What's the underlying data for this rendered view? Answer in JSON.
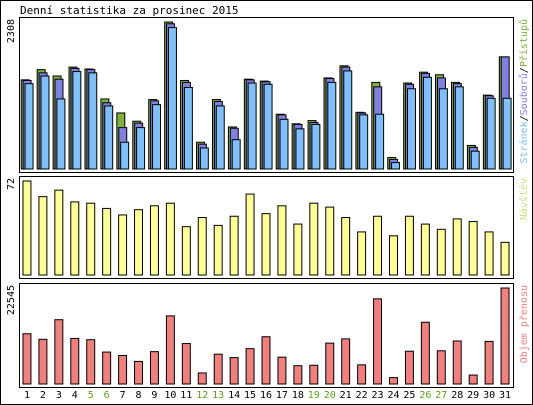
{
  "chart_data": {
    "type": "bar",
    "title": "Denní statistika za prosinec 2015",
    "categories": [
      "1",
      "2",
      "3",
      "4",
      "5",
      "6",
      "7",
      "8",
      "9",
      "10",
      "11",
      "12",
      "13",
      "14",
      "15",
      "16",
      "17",
      "18",
      "19",
      "20",
      "21",
      "22",
      "23",
      "24",
      "25",
      "26",
      "27",
      "28",
      "29",
      "30",
      "31"
    ],
    "weekend_days": [
      "5",
      "6",
      "12",
      "13",
      "19",
      "20",
      "26",
      "27"
    ],
    "colors": {
      "pristupu": "#80b040",
      "souboru": "#8080e0",
      "stranek": "#80c0f8",
      "navstev": "#ffff99",
      "objem": "#f08080",
      "weekday_tick": "#000000",
      "weekend_tick": "#60a020"
    },
    "panels": [
      {
        "ylabel": "Stránek/Souborů/Přístupů",
        "ylabel_parts": [
          {
            "text": "Stránek",
            "color": "#80c0f8"
          },
          {
            "text": "/",
            "color": "#000000"
          },
          {
            "text": "Souborů",
            "color": "#8080e0"
          },
          {
            "text": "/",
            "color": "#000000"
          },
          {
            "text": "Přístupů",
            "color": "#80b040"
          }
        ],
        "ymax_label": "2308",
        "ylim": [
          0,
          2308
        ],
        "series": [
          {
            "name": "Přístupů",
            "values": [
              1400,
              1560,
              1460,
              1600,
              1570,
              1100,
              880,
              750,
              1090,
              2308,
              1390,
              420,
              1090,
              660,
              1410,
              1380,
              860,
              710,
              760,
              1430,
              1620,
              890,
              1360,
              180,
              1350,
              1520,
              1480,
              1360,
              370,
              1160,
              1760
            ]
          },
          {
            "name": "Souborů",
            "values": [
              1390,
              1510,
              1410,
              1580,
              1560,
              1040,
              650,
              720,
              1070,
              2280,
              1360,
              390,
              1060,
              640,
              1400,
              1370,
              850,
              700,
              730,
              1420,
              1600,
              880,
              1290,
              150,
              1330,
              1500,
              1430,
              1340,
              340,
              1150,
              1760
            ]
          },
          {
            "name": "Stránek",
            "values": [
              1340,
              1460,
              1100,
              1530,
              1510,
              990,
              420,
              650,
              1010,
              2220,
              1280,
              330,
              990,
              460,
              1350,
              1330,
              780,
              630,
              700,
              1360,
              1540,
              850,
              860,
              100,
              1260,
              1440,
              1260,
              1290,
              280,
              1110,
              1110
            ]
          }
        ]
      },
      {
        "ylabel": "Návštěv",
        "ymax_label": "72",
        "ylim": [
          0,
          72
        ],
        "series": [
          {
            "name": "Návštěv",
            "values": [
              72,
              60,
              65,
              56,
              55,
              51,
              46,
              50,
              53,
              55,
              37,
              44,
              38,
              45,
              62,
              47,
              53,
              39,
              55,
              52,
              44,
              33,
              45,
              30,
              45,
              39,
              35,
              43,
              41,
              33,
              25
            ]
          }
        ]
      },
      {
        "ylabel": "Objem přenosu",
        "ymax_label": "22545",
        "ylim": [
          0,
          22545
        ],
        "series": [
          {
            "name": "Objem přenosu",
            "values": [
              11800,
              10500,
              15100,
              10700,
              10400,
              7500,
              6700,
              5300,
              7600,
              16000,
              9500,
              2600,
              7000,
              6200,
              8300,
              11100,
              6300,
              4300,
              4400,
              9600,
              10600,
              4500,
              20000,
              1500,
              7700,
              14500,
              7800,
              10100,
              2100,
              10000,
              22545
            ]
          }
        ]
      }
    ]
  }
}
